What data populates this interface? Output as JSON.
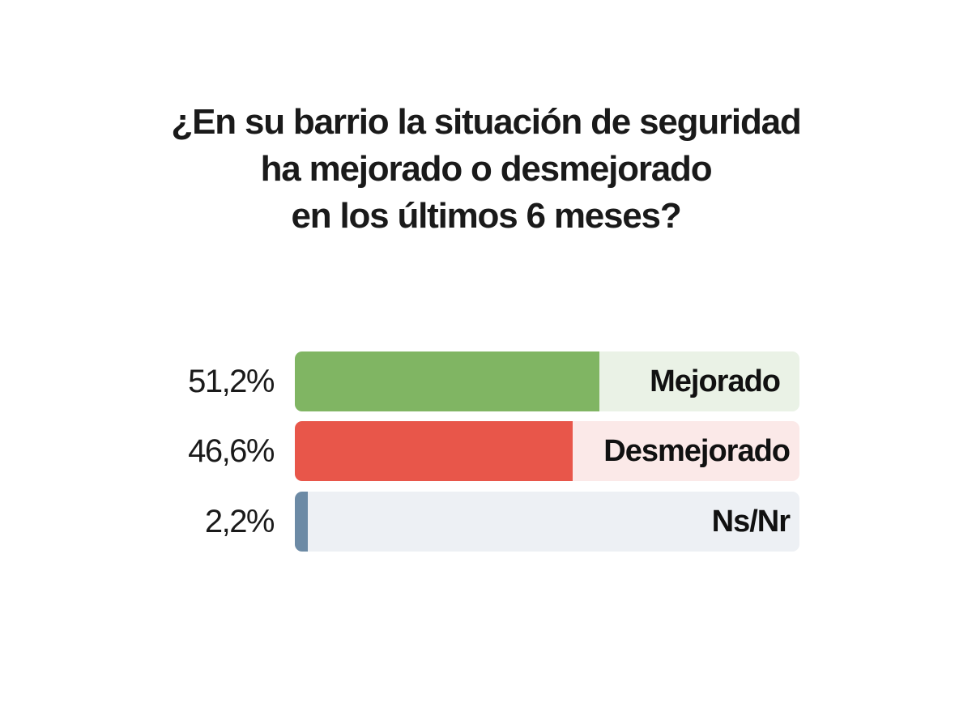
{
  "title_lines": [
    "¿En su barrio la situación de seguridad",
    "ha mejorado o desmejorado",
    "en los últimos 6 meses?"
  ],
  "chart_data": {
    "type": "bar",
    "orientation": "horizontal",
    "title": "¿En su barrio la situación de seguridad ha mejorado o desmejorado en los últimos 6 meses?",
    "categories": [
      "Mejorado",
      "Desmejorado",
      "Ns/Nr"
    ],
    "values": [
      51.2,
      46.6,
      2.2
    ],
    "value_labels": [
      "51,2%",
      "46,6%",
      "2,2%"
    ],
    "xlim": [
      0,
      100
    ],
    "unit": "%",
    "grid": false,
    "colors": {
      "fill": [
        "#80b563",
        "#e8564a",
        "#6c8aa5"
      ],
      "track": [
        "#eaf2e6",
        "#fbe9e8",
        "#edf0f4"
      ]
    }
  }
}
